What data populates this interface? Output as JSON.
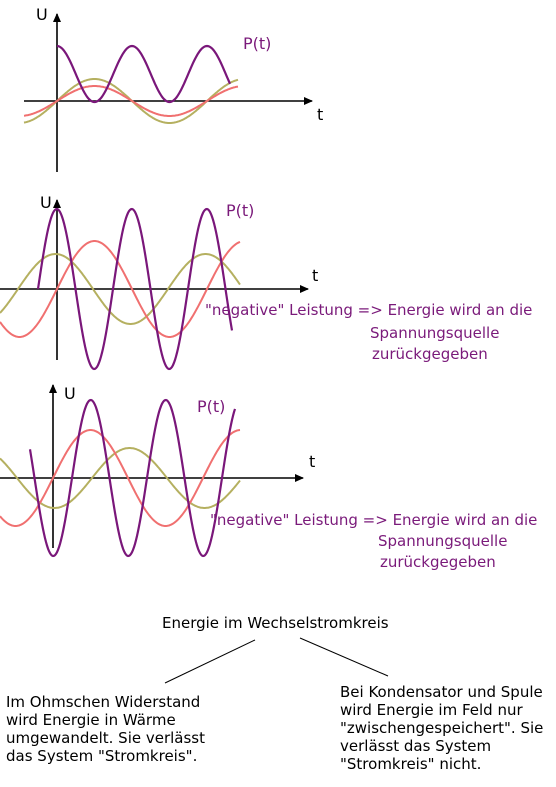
{
  "colors": {
    "power": "#7a177a",
    "voltage": "#f07070",
    "current": "#b5b060",
    "axis": "#000000",
    "annotation": "#7a1a7a"
  },
  "panels": [
    {
      "id": "resistor",
      "y_axis_label": "U",
      "x_axis_label": "t",
      "power_label": "P(t)",
      "annotation": []
    },
    {
      "id": "capacitor",
      "y_axis_label": "U",
      "x_axis_label": "t",
      "power_label": "P(t)",
      "annotation": [
        "\"negative\" Leistung => Energie wird an die",
        "Spannungsquelle",
        "zurückgegeben"
      ]
    },
    {
      "id": "inductor",
      "y_axis_label": "U",
      "x_axis_label": "t",
      "power_label": "P(t)",
      "annotation": [
        "\"negative\" Leistung => Energie wird an die",
        "Spannungsquelle",
        "zurückgegeben"
      ]
    }
  ],
  "summary": {
    "title": "Energie im Wechselstromkreis",
    "left": [
      "Im Ohmschen Widerstand",
      "wird Energie in Wärme",
      "umgewandelt. Sie verlässt",
      "das System \"Stromkreis\"."
    ],
    "right": [
      "Bei Kondensator und Spule",
      "wird Energie im Feld nur",
      "\"zwischengespeichert\". Sie",
      "verlässt das System",
      "\"Stromkreis\" nicht."
    ]
  }
}
